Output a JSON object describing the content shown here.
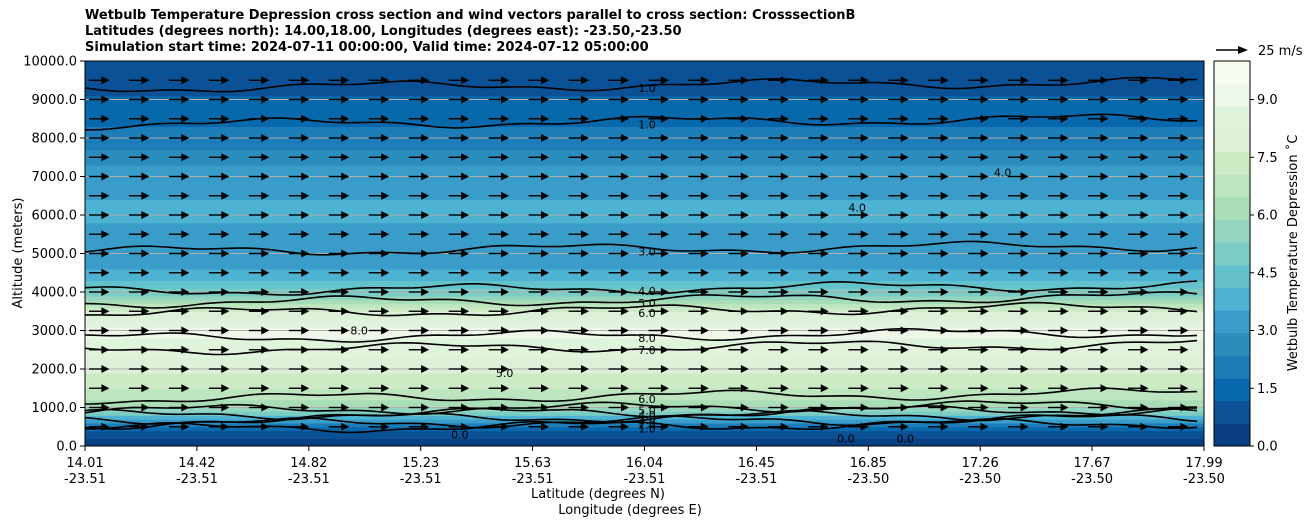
{
  "chart_data": {
    "type": "heatmap",
    "title_lines": [
      "Wetbulb Temperature Depression cross section and wind vectors parallel to cross section: CrosssectionB",
      "Latitudes (degrees north): 14.00,18.00, Longitudes (degrees east): -23.50,-23.50",
      "Simulation start time: 2024-07-11 00:00:00, Valid time: 2024-07-12 05:00:00"
    ],
    "ylabel": "Altitude (meters)",
    "xlabel_lat": "Latitude (degrees N)",
    "xlabel_lon": "Longitude (degrees E)",
    "ylim": [
      0,
      10000
    ],
    "y_ticks": [
      "0.0",
      "1000.0",
      "2000.0",
      "3000.0",
      "4000.0",
      "5000.0",
      "6000.0",
      "7000.0",
      "8000.0",
      "9000.0",
      "10000.0"
    ],
    "x_ticks": [
      {
        "lat": "14.01",
        "lon": "-23.51"
      },
      {
        "lat": "14.42",
        "lon": "-23.51"
      },
      {
        "lat": "14.82",
        "lon": "-23.51"
      },
      {
        "lat": "15.23",
        "lon": "-23.51"
      },
      {
        "lat": "15.63",
        "lon": "-23.51"
      },
      {
        "lat": "16.04",
        "lon": "-23.51"
      },
      {
        "lat": "16.45",
        "lon": "-23.51"
      },
      {
        "lat": "16.85",
        "lon": "-23.50"
      },
      {
        "lat": "17.26",
        "lon": "-23.50"
      },
      {
        "lat": "17.67",
        "lon": "-23.50"
      },
      {
        "lat": "17.99",
        "lon": "-23.50"
      }
    ],
    "grid": "horizontal",
    "colorbar": {
      "label": "Wetbulb Temperature Depression ˚C",
      "range": [
        0,
        10
      ],
      "ticks": [
        "0.0",
        "1.5",
        "3.0",
        "4.5",
        "6.0",
        "7.5",
        "9.0"
      ],
      "colors": [
        "#084081",
        "#0a5196",
        "#0868ac",
        "#1d7db9",
        "#2b8cbe",
        "#3a9cc8",
        "#4eb3d3",
        "#64c2cd",
        "#7bccc4",
        "#93d5c0",
        "#a8ddb5",
        "#bde5bf",
        "#ccebc5",
        "#dcf1d8",
        "#e0f3db",
        "#eef8e9",
        "#f7fcf0"
      ]
    },
    "vector_key": "25 m/s",
    "depression_profile": [
      {
        "alt": 0,
        "value": 0.3
      },
      {
        "alt": 200,
        "value": 0.5
      },
      {
        "alt": 500,
        "value": 1.5
      },
      {
        "alt": 800,
        "value": 4.5
      },
      {
        "alt": 1100,
        "value": 6.2
      },
      {
        "alt": 1500,
        "value": 7.0
      },
      {
        "alt": 2000,
        "value": 7.8
      },
      {
        "alt": 2500,
        "value": 8.6
      },
      {
        "alt": 3000,
        "value": 9.0
      },
      {
        "alt": 3500,
        "value": 7.5
      },
      {
        "alt": 4000,
        "value": 5.0
      },
      {
        "alt": 4500,
        "value": 3.6
      },
      {
        "alt": 5000,
        "value": 3.2
      },
      {
        "alt": 6000,
        "value": 3.6
      },
      {
        "alt": 7000,
        "value": 3.4
      },
      {
        "alt": 8000,
        "value": 2.0
      },
      {
        "alt": 9000,
        "value": 1.2
      },
      {
        "alt": 10000,
        "value": 0.8
      }
    ],
    "contour_levels": [
      {
        "label": "1.0",
        "alt": 9300
      },
      {
        "label": "1.0",
        "alt": 8350
      },
      {
        "label": "3.0",
        "alt": 5050
      },
      {
        "label": "4.0",
        "alt": 4020
      },
      {
        "label": "5.0",
        "alt": 3720
      },
      {
        "label": "6.0",
        "alt": 3450
      },
      {
        "label": "8.0",
        "alt": 2800
      },
      {
        "label": "7.0",
        "alt": 2500
      },
      {
        "label": "6.0",
        "alt": 1220
      },
      {
        "label": "5.0",
        "alt": 920
      },
      {
        "label": "4.0",
        "alt": 800
      },
      {
        "label": "3.0",
        "alt": 680
      },
      {
        "label": "2.0",
        "alt": 560
      },
      {
        "label": "1.0",
        "alt": 450
      }
    ],
    "contour_labels_extra": [
      {
        "label": "5.0",
        "x_frac": 0.375,
        "alt": 1900
      },
      {
        "label": "8.0",
        "x_frac": 0.245,
        "alt": 3000
      },
      {
        "label": "0.0",
        "x_frac": 0.335,
        "alt": 300
      },
      {
        "label": "0.0",
        "x_frac": 0.68,
        "alt": 200
      },
      {
        "label": "0.0",
        "x_frac": 0.733,
        "alt": 200
      },
      {
        "label": "4.0",
        "x_frac": 0.82,
        "alt": 7100
      },
      {
        "label": "4.0",
        "x_frac": 0.69,
        "alt": 6200
      }
    ],
    "wind_vectors": {
      "direction": "parallel",
      "u_ms": 12,
      "rows_alt": [
        9500,
        9000,
        8500,
        8000,
        7500,
        7000,
        6500,
        6000,
        5500,
        5000,
        4500,
        4000,
        3500,
        3000,
        2500,
        2000,
        1500,
        1000,
        500
      ]
    }
  }
}
